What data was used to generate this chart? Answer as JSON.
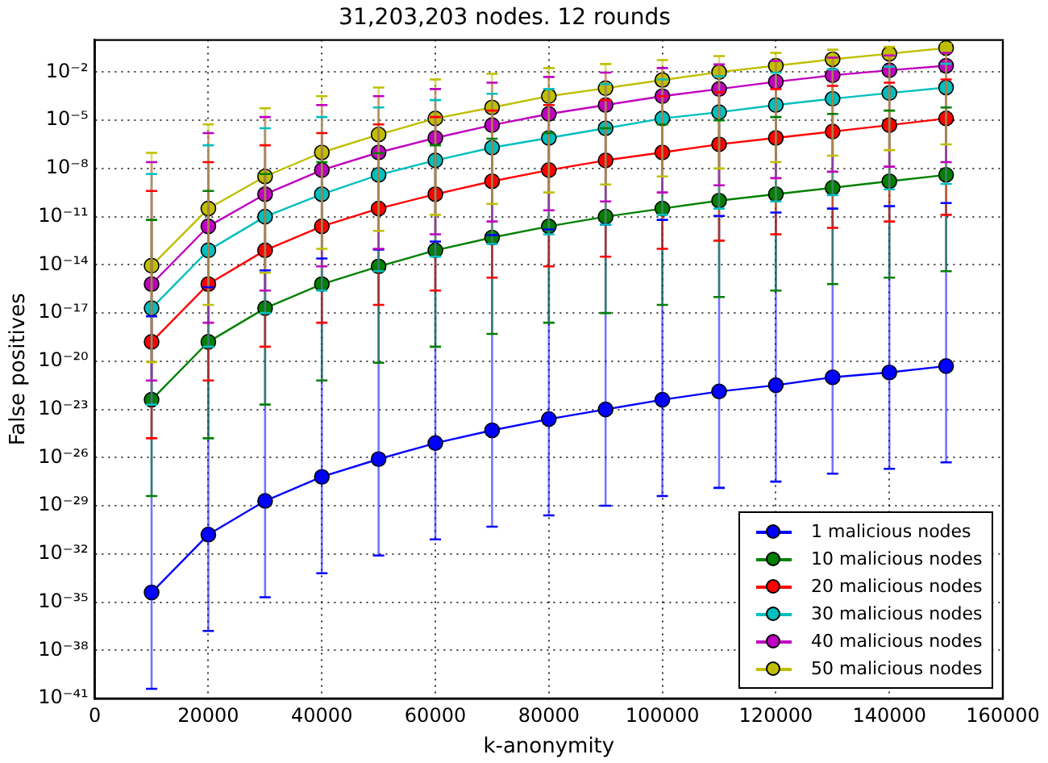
{
  "chart_data": {
    "type": "line",
    "title": "31,203,203 nodes. 12 rounds",
    "xlabel": "k-anonymity",
    "ylabel": "False positives",
    "x": [
      10000,
      20000,
      30000,
      40000,
      50000,
      60000,
      70000,
      80000,
      90000,
      100000,
      110000,
      120000,
      130000,
      140000,
      150000
    ],
    "xlim": [
      0,
      160000
    ],
    "xticks": [
      0,
      20000,
      40000,
      60000,
      80000,
      100000,
      120000,
      140000,
      160000
    ],
    "ylim": [
      1e-41,
      1
    ],
    "log": "y",
    "yticks": [
      {
        "value": 1e-41,
        "label": "10⁻⁴¹"
      },
      {
        "value": 1e-38,
        "label": "10⁻³⁸"
      },
      {
        "value": 1e-35,
        "label": "10⁻³⁵"
      },
      {
        "value": 1e-32,
        "label": "10⁻³²"
      },
      {
        "value": 1e-29,
        "label": "10⁻²⁹"
      },
      {
        "value": 1e-26,
        "label": "10⁻²⁶"
      },
      {
        "value": 1e-23,
        "label": "10⁻²³"
      },
      {
        "value": 1e-20,
        "label": "10⁻²⁰"
      },
      {
        "value": 1e-17,
        "label": "10⁻¹⁷"
      },
      {
        "value": 1e-14,
        "label": "10⁻¹⁴"
      },
      {
        "value": 1e-11,
        "label": "10⁻¹¹"
      },
      {
        "value": 1e-08,
        "label": "10⁻⁸"
      },
      {
        "value": 1e-05,
        "label": "10⁻⁵"
      },
      {
        "value": 0.01,
        "label": "10⁻²"
      }
    ],
    "grid": true,
    "legend": "bottom right",
    "marker": "circle",
    "series": [
      {
        "name": "1 malicious nodes",
        "color": "#0000ff",
        "values": [
          4e-35,
          1.6e-31,
          2e-29,
          6.3e-28,
          8e-27,
          8e-26,
          5e-25,
          2.5e-24,
          1e-23,
          4e-23,
          1.3e-22,
          3.2e-22,
          1e-21,
          2e-21,
          5e-21
        ],
        "errors": [
          [
            4e-41,
            6.3e-18
          ],
          [
            1.6e-37,
            4e-16
          ],
          [
            2e-35,
            4.5e-15
          ],
          [
            6.3e-34,
            2.5e-14
          ],
          [
            8e-33,
            8.9e-14
          ],
          [
            8e-32,
            2.8e-13
          ],
          [
            5e-31,
            7.1e-13
          ],
          [
            2.5e-30,
            1.6e-12
          ],
          [
            1e-29,
            3.2e-12
          ],
          [
            4e-29,
            6.3e-12
          ],
          [
            1.3e-28,
            1.1e-11
          ],
          [
            3.2e-28,
            1.8e-11
          ],
          [
            1e-27,
            3.2e-11
          ],
          [
            2e-27,
            4.5e-11
          ],
          [
            5e-27,
            7.1e-11
          ]
        ]
      },
      {
        "name": "10 malicious nodes",
        "color": "#008000",
        "values": [
          4e-23,
          1.6e-19,
          2e-17,
          6.3e-16,
          8e-15,
          8e-14,
          5e-13,
          2.5e-12,
          1e-11,
          3.2e-11,
          1e-10,
          2.5e-10,
          6.3e-10,
          1.6e-09,
          4e-09
        ],
        "errors": [
          [
            4e-29,
            6.3e-12
          ],
          [
            1.6e-25,
            4e-10
          ],
          [
            2e-23,
            4.5e-09
          ],
          [
            6.3e-22,
            2.5e-08
          ],
          [
            8e-21,
            8.9e-08
          ],
          [
            8e-20,
            2.8e-07
          ],
          [
            5e-19,
            7.1e-07
          ],
          [
            2.5e-18,
            1.6e-06
          ],
          [
            1e-17,
            3.2e-06
          ],
          [
            3.2e-17,
            5.6e-06
          ],
          [
            1e-16,
            1e-05
          ],
          [
            2.5e-16,
            1.6e-05
          ],
          [
            6.3e-16,
            2.5e-05
          ],
          [
            1.6e-15,
            4e-05
          ],
          [
            4e-15,
            6.3e-05
          ]
        ]
      },
      {
        "name": "20 malicious nodes",
        "color": "#ff0000",
        "values": [
          1.6e-19,
          6.3e-16,
          8e-14,
          2.5e-12,
          3.2e-11,
          2.5e-10,
          1.6e-09,
          8e-09,
          3.2e-08,
          1e-07,
          3.2e-07,
          8e-07,
          2e-06,
          5e-06,
          1.3e-05
        ],
        "errors": [
          [
            1.6e-25,
            4e-10
          ],
          [
            6.3e-22,
            2.5e-08
          ],
          [
            8e-20,
            2.8e-07
          ],
          [
            2.5e-18,
            1.6e-06
          ],
          [
            3.2e-17,
            5.6e-06
          ],
          [
            2.5e-16,
            1.6e-05
          ],
          [
            1.6e-15,
            4e-05
          ],
          [
            8e-15,
            8.9e-05
          ],
          [
            3.2e-14,
            0.00018
          ],
          [
            1e-13,
            0.00032
          ],
          [
            3.2e-13,
            0.00056
          ],
          [
            8e-13,
            0.00089
          ],
          [
            2e-12,
            0.0014
          ],
          [
            5e-12,
            0.0022
          ],
          [
            1.3e-11,
            0.0035
          ]
        ]
      },
      {
        "name": "30 malicious nodes",
        "color": "#00bfbf",
        "values": [
          2e-17,
          8e-14,
          1e-11,
          2.5e-10,
          4e-09,
          3.2e-08,
          2e-07,
          8e-07,
          3.2e-06,
          1.3e-05,
          3.2e-05,
          8.9e-05,
          0.00022,
          0.0005,
          0.0011
        ],
        "errors": [
          [
            2e-23,
            4.5e-09
          ],
          [
            8e-20,
            2.8e-07
          ],
          [
            1e-17,
            3.2e-06
          ],
          [
            2.5e-16,
            1.6e-05
          ],
          [
            4e-15,
            6.3e-05
          ],
          [
            3.2e-14,
            0.00018
          ],
          [
            2e-13,
            0.00045
          ],
          [
            8e-13,
            0.00089
          ],
          [
            3.2e-12,
            0.0018
          ],
          [
            1.3e-11,
            0.0035
          ],
          [
            3.2e-11,
            0.0056
          ],
          [
            8.9e-11,
            0.0094
          ],
          [
            2.2e-10,
            0.015
          ],
          [
            5e-10,
            0.022
          ],
          [
            1.1e-09,
            0.033
          ]
        ]
      },
      {
        "name": "40 malicious nodes",
        "color": "#bf00bf",
        "values": [
          6.3e-16,
          2.5e-12,
          2.5e-10,
          8e-09,
          1e-07,
          8e-07,
          5e-06,
          2.5e-05,
          8.9e-05,
          0.00032,
          0.00089,
          0.0025,
          0.0063,
          0.013,
          0.025
        ],
        "errors": [
          [
            6.3e-22,
            2.5e-08
          ],
          [
            2.5e-18,
            1.6e-06
          ],
          [
            2.5e-16,
            1.6e-05
          ],
          [
            8e-15,
            8.9e-05
          ],
          [
            1e-13,
            0.00032
          ],
          [
            8e-13,
            0.00089
          ],
          [
            5e-12,
            0.0022
          ],
          [
            2.5e-11,
            0.005
          ],
          [
            8.9e-11,
            0.0094
          ],
          [
            3.2e-10,
            0.018
          ],
          [
            8.9e-10,
            0.03
          ],
          [
            2.5e-09,
            0.05
          ],
          [
            6.3e-09,
            0.08
          ],
          [
            1.3e-08,
            0.11
          ],
          [
            2.5e-08,
            0.16
          ]
        ]
      },
      {
        "name": "50 malicious nodes",
        "color": "#bfbf00",
        "values": [
          8.9e-15,
          3.2e-11,
          3.2e-09,
          1e-07,
          1.3e-06,
          1.3e-05,
          6.3e-05,
          0.00032,
          0.001,
          0.0032,
          0.01,
          0.025,
          0.063,
          0.14,
          0.32
        ],
        "errors": [
          [
            8.9e-21,
            9.4e-08
          ],
          [
            3.2e-17,
            5.6e-06
          ],
          [
            3.2e-15,
            5.6e-05
          ],
          [
            1e-13,
            0.00032
          ],
          [
            1.3e-12,
            0.0011
          ],
          [
            1.3e-11,
            0.0035
          ],
          [
            6.3e-11,
            0.0079
          ],
          [
            3.2e-10,
            0.018
          ],
          [
            1e-09,
            0.032
          ],
          [
            3.2e-09,
            0.056
          ],
          [
            1e-08,
            0.1
          ],
          [
            2.5e-08,
            0.16
          ],
          [
            6.3e-08,
            0.25
          ],
          [
            1.4e-07,
            0.38
          ],
          [
            3.2e-07,
            0.56
          ]
        ]
      }
    ]
  }
}
